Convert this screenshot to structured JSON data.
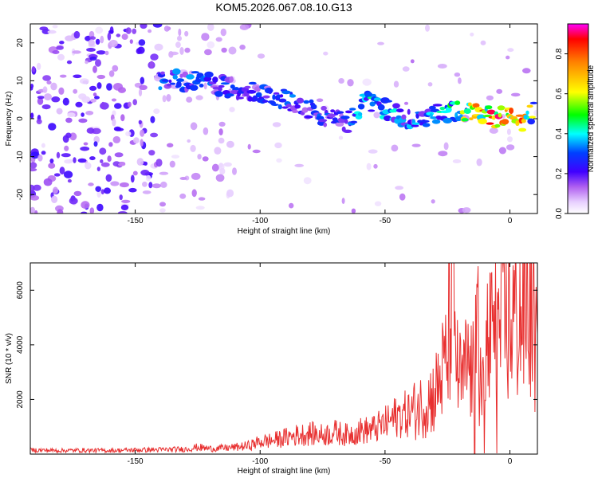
{
  "title": "KOM5.2026.067.08.10.G13",
  "colors": {
    "snr_line": "#e83030",
    "axis": "#000000"
  },
  "chart_data": [
    {
      "type": "heatmap",
      "xlabel": "Height of straight line (km)",
      "ylabel": "Frequency (Hz)",
      "xlim": [
        -192,
        11
      ],
      "ylim": [
        -25,
        25
      ],
      "xticks": [
        -150,
        -100,
        -50,
        0
      ],
      "xtick_labels": [
        "-150",
        "-100",
        "-50",
        "0"
      ],
      "yticks": [
        -20,
        -10,
        0,
        10,
        20
      ],
      "ytick_labels": [
        "-20",
        "-10",
        "0",
        "10",
        "20"
      ],
      "colorbar": {
        "label": "Normalized spectral amplitude",
        "range": [
          0,
          0.95
        ],
        "ticks": [
          0.0,
          0.2,
          0.4,
          0.6,
          0.8
        ],
        "tick_labels": [
          "0.0",
          "0.2",
          "0.4",
          "0.6",
          "0.8"
        ]
      },
      "ridge": [
        {
          "x": -140,
          "f": 10,
          "a": 0.32
        },
        {
          "x": -125,
          "f": 10,
          "a": 0.35
        },
        {
          "x": -110,
          "f": 8,
          "a": 0.3
        },
        {
          "x": -95,
          "f": 6,
          "a": 0.28
        },
        {
          "x": -85,
          "f": 4,
          "a": 0.32
        },
        {
          "x": -75,
          "f": 1,
          "a": 0.3
        },
        {
          "x": -65,
          "f": -1,
          "a": 0.28
        },
        {
          "x": -58,
          "f": 5,
          "a": 0.45
        },
        {
          "x": -48,
          "f": 2,
          "a": 0.4
        },
        {
          "x": -38,
          "f": -1,
          "a": 0.35
        },
        {
          "x": -30,
          "f": 1,
          "a": 0.4
        },
        {
          "x": -20,
          "f": 2,
          "a": 0.55
        },
        {
          "x": -12,
          "f": 1,
          "a": 0.8
        },
        {
          "x": -5,
          "f": 0,
          "a": 0.85
        },
        {
          "x": 0,
          "f": 2,
          "a": 0.85
        },
        {
          "x": 5,
          "f": -1,
          "a": 0.8
        },
        {
          "x": 10,
          "f": 2,
          "a": 0.55
        }
      ]
    },
    {
      "type": "line",
      "xlabel": "Height of straight line (km)",
      "ylabel": "SNR (10 * v/v)",
      "xlim": [
        -192,
        11
      ],
      "ylim": [
        0,
        7000
      ],
      "xticks": [
        -150,
        -100,
        -50,
        0
      ],
      "xtick_labels": [
        "-150",
        "-100",
        "-50",
        "0"
      ],
      "yticks": [
        2000,
        4000,
        6000
      ],
      "ytick_labels": [
        "2000",
        "4000",
        "6000"
      ],
      "series": [
        {
          "name": "SNR",
          "x": [
            -192,
            -180,
            -170,
            -160,
            -150,
            -140,
            -130,
            -125,
            -120,
            -115,
            -110,
            -105,
            -100,
            -95,
            -90,
            -85,
            -80,
            -75,
            -70,
            -65,
            -60,
            -55,
            -50,
            -45,
            -40,
            -35,
            -30,
            -27,
            -25,
            -23,
            -21,
            -19,
            -17,
            -15,
            -13,
            -11,
            -9,
            -7,
            -5,
            -3,
            -1,
            1,
            3,
            5,
            7,
            9,
            11
          ],
          "y": [
            150,
            130,
            140,
            130,
            150,
            160,
            180,
            250,
            200,
            220,
            250,
            300,
            450,
            500,
            600,
            700,
            750,
            700,
            800,
            700,
            850,
            900,
            1100,
            1400,
            1500,
            1800,
            2200,
            3000,
            3500,
            6500,
            3000,
            2500,
            3400,
            2800,
            4800,
            2000,
            4000,
            4200,
            4400,
            4600,
            4800,
            5000,
            5100,
            5200,
            5400,
            5300,
            3500
          ]
        }
      ]
    }
  ]
}
